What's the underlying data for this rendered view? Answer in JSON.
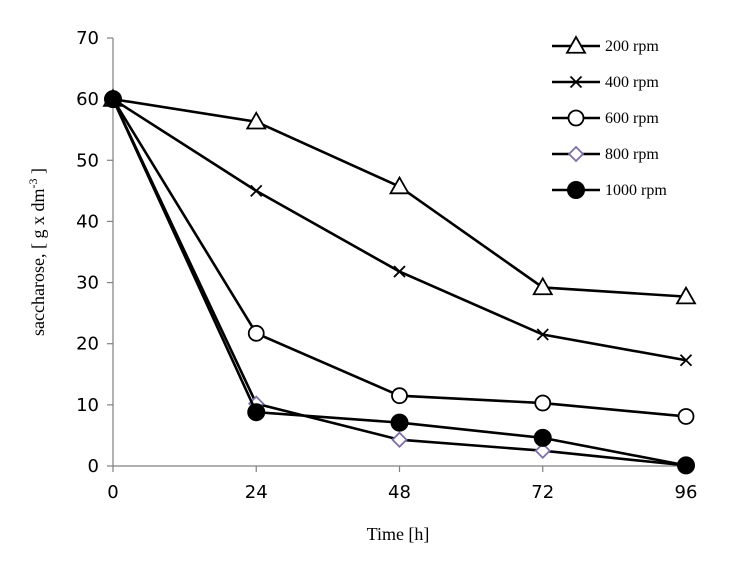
{
  "chart_data": {
    "type": "line",
    "xlabel": "Time [h]",
    "ylabel": "saccharose,  [ g x dm",
    "ylabel_sup": "-3",
    "ylabel_end": " ]",
    "x": [
      0,
      24,
      48,
      72,
      96
    ],
    "x_ticks": [
      "0",
      "24",
      "48",
      "72",
      "96"
    ],
    "y_ticks": [
      "0",
      "10",
      "20",
      "30",
      "40",
      "50",
      "60",
      "70"
    ],
    "ylim": [
      0,
      70
    ],
    "xlim": [
      0,
      96
    ],
    "grid": false,
    "legend_position": "top-right",
    "series": [
      {
        "name": "200 rpm",
        "marker": "triangle-open",
        "values": [
          60,
          56.3,
          45.7,
          29.2,
          27.7
        ],
        "color": "#000000"
      },
      {
        "name": "400 rpm",
        "marker": "x",
        "values": [
          60,
          45,
          31.8,
          21.5,
          17.3
        ],
        "color": "#000000"
      },
      {
        "name": "600 rpm",
        "marker": "circle-open",
        "values": [
          60,
          21.7,
          11.5,
          10.3,
          8.1
        ],
        "color": "#000000"
      },
      {
        "name": "800 rpm",
        "marker": "diamond-open",
        "values": [
          60,
          10.2,
          4.3,
          2.5,
          0.1
        ],
        "color": "#000000",
        "marker_color": "#7f6fa8"
      },
      {
        "name": "1000 rpm",
        "marker": "circle-filled",
        "values": [
          60,
          8.8,
          7.1,
          4.6,
          0.1
        ],
        "color": "#000000"
      }
    ]
  }
}
